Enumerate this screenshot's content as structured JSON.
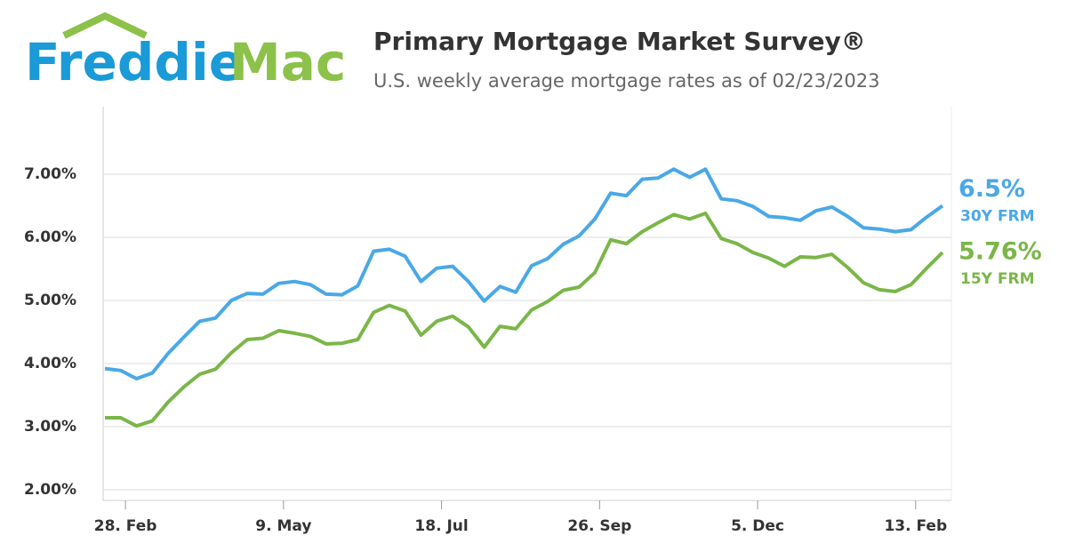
{
  "logo": {
    "first": "Freddie",
    "second": "Mac"
  },
  "chart_data": {
    "type": "line",
    "title": "Primary Mortgage Market Survey®",
    "subtitle": "U.S. weekly average mortgage rates as of 02/23/2023",
    "categories": [
      null,
      "28. Feb",
      null,
      null,
      null,
      null,
      null,
      null,
      null,
      null,
      null,
      "9. May",
      null,
      null,
      null,
      null,
      null,
      null,
      null,
      null,
      null,
      "18. Jul",
      null,
      null,
      null,
      null,
      null,
      null,
      null,
      null,
      null,
      "26. Sep",
      null,
      null,
      null,
      null,
      null,
      null,
      null,
      null,
      null,
      "5. Dec",
      null,
      null,
      null,
      null,
      null,
      null,
      null,
      null,
      null,
      "13. Feb",
      null,
      null
    ],
    "series": [
      {
        "name": "30Y FRM",
        "color": "#4aa8e6",
        "values": [
          3.92,
          3.89,
          3.76,
          3.85,
          4.16,
          4.42,
          4.67,
          4.72,
          5.0,
          5.11,
          5.1,
          5.27,
          5.3,
          5.25,
          5.1,
          5.09,
          5.23,
          5.78,
          5.81,
          5.7,
          5.3,
          5.51,
          5.54,
          5.3,
          4.99,
          5.22,
          5.13,
          5.55,
          5.66,
          5.89,
          6.02,
          6.29,
          6.7,
          6.66,
          6.92,
          6.94,
          7.08,
          6.95,
          7.08,
          6.61,
          6.58,
          6.49,
          6.33,
          6.31,
          6.27,
          6.42,
          6.48,
          6.33,
          6.15,
          6.13,
          6.09,
          6.12,
          6.32,
          6.5
        ],
        "value_labels": [
          null,
          null,
          null,
          null,
          null,
          null,
          null,
          null,
          null,
          null,
          null,
          null,
          null,
          null,
          null,
          null,
          null,
          null,
          null,
          null,
          null,
          null,
          null,
          null,
          null,
          null,
          null,
          null,
          null,
          null,
          null,
          null,
          null,
          null,
          null,
          null,
          null,
          null,
          null,
          null,
          null,
          null,
          null,
          null,
          null,
          null,
          null,
          null,
          null,
          null,
          null,
          null,
          null,
          "6.5%"
        ]
      },
      {
        "name": "15Y FRM",
        "color": "#7ab648",
        "values": [
          3.14,
          3.14,
          3.01,
          3.09,
          3.39,
          3.63,
          3.83,
          3.91,
          4.17,
          4.38,
          4.4,
          4.52,
          4.48,
          4.43,
          4.31,
          4.32,
          4.38,
          4.81,
          4.92,
          4.83,
          4.45,
          4.67,
          4.75,
          4.58,
          4.26,
          4.59,
          4.55,
          4.85,
          4.98,
          5.16,
          5.21,
          5.44,
          5.96,
          5.9,
          6.09,
          6.23,
          6.36,
          6.29,
          6.38,
          5.98,
          5.9,
          5.76,
          5.67,
          5.54,
          5.69,
          5.68,
          5.73,
          5.52,
          5.28,
          5.17,
          5.14,
          5.25,
          5.51,
          5.76
        ],
        "value_labels": [
          null,
          null,
          null,
          null,
          null,
          null,
          null,
          null,
          null,
          null,
          null,
          null,
          null,
          null,
          null,
          null,
          null,
          null,
          null,
          null,
          null,
          null,
          null,
          null,
          null,
          null,
          null,
          null,
          null,
          null,
          null,
          null,
          null,
          null,
          null,
          null,
          null,
          null,
          null,
          null,
          null,
          null,
          null,
          null,
          null,
          null,
          null,
          null,
          null,
          null,
          null,
          null,
          null,
          "5.76%"
        ]
      }
    ],
    "ylim": [
      1.83,
      8.07
    ],
    "yticks": [
      {
        "value": 2,
        "label": "2.00%"
      },
      {
        "value": 3,
        "label": "3.00%"
      },
      {
        "value": 4,
        "label": "4.00%"
      },
      {
        "value": 5,
        "label": "5.00%"
      },
      {
        "value": 6,
        "label": "6.00%"
      },
      {
        "value": 7,
        "label": "7.00%"
      }
    ],
    "grid": true
  }
}
